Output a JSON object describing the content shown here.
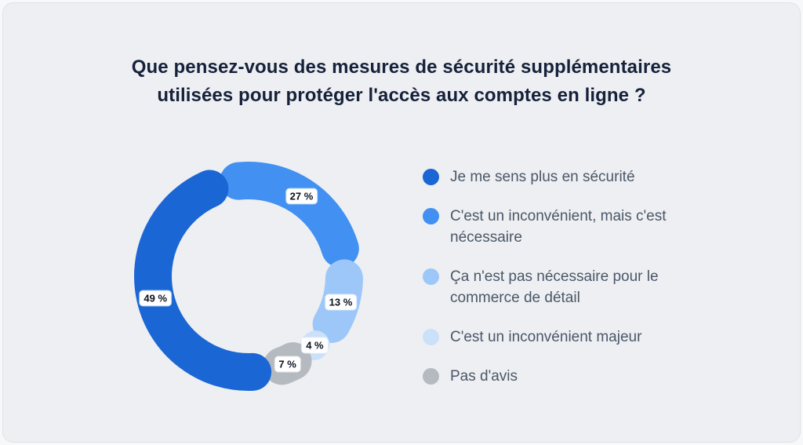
{
  "chart_data": {
    "type": "pie",
    "variant": "donut",
    "title": "Que pensez-vous des mesures de sécurité supplémentaires utilisées pour protéger l'accès aux comptes en ligne ?",
    "unit": "%",
    "start_angle_deg": -105,
    "direction": "clockwise",
    "legend_position": "right",
    "grid": false,
    "segments": [
      {
        "label": "C'est un inconvénient, mais c'est nécessaire",
        "value": 27,
        "display": "27 %",
        "color": "#4190f2"
      },
      {
        "label": "Ça n'est pas nécessaire pour le commerce de détail",
        "value": 13,
        "display": "13 %",
        "color": "#9dc7f8"
      },
      {
        "label": "C'est un inconvénient majeur",
        "value": 4,
        "display": "4 %",
        "color": "#cbe0f9"
      },
      {
        "label": "Pas d'avis",
        "value": 7,
        "display": "7 %",
        "color": "#b5bac0"
      },
      {
        "label": "Je me sens plus en sécurité",
        "value": 49,
        "display": "49 %",
        "color": "#1a66d4"
      }
    ],
    "legend": [
      {
        "label": "Je me sens plus en sécurité",
        "color": "#1a66d4"
      },
      {
        "label": "C'est un inconvénient, mais c'est nécessaire",
        "color": "#4190f2"
      },
      {
        "label": "Ça n'est pas nécessaire pour le commerce de détail",
        "color": "#9dc7f8"
      },
      {
        "label": "C'est un inconvénient majeur",
        "color": "#cbe0f9"
      },
      {
        "label": "Pas d'avis",
        "color": "#b5bac0"
      }
    ]
  }
}
